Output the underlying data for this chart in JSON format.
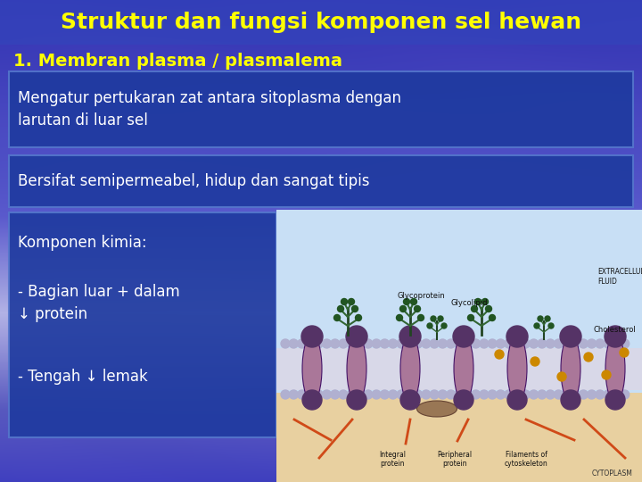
{
  "title": "Struktur dan fungsi komponen sel hewan",
  "title_color": "#FFFF00",
  "title_fontsize": 18,
  "subtitle": "1. Membran plasma / plasmalema",
  "subtitle_color": "#FFFF00",
  "subtitle_fontsize": 14,
  "box1_text": "Mengatur pertukaran zat antara sitoplasma dengan\nlarutan di luar sel",
  "box2_text": "Bersifat semipermeabel, hidup dan sangat tipis",
  "box3_line1": "Komponen kimia:",
  "box3_line2": "- Bagian luar + dalam\n↓ protein",
  "box3_line3": "- Tengah ↓ lemak",
  "box_bg_color": "#1e3a9f",
  "box_border_color": "#5577cc",
  "box_text_color": "#ffffff",
  "text_fontsize": 12,
  "figsize": [
    7.2,
    5.4
  ],
  "dpi": 100,
  "bg_top": "#1a1ab0",
  "bg_mid": "#8899cc",
  "bg_bot": "#3344aa"
}
